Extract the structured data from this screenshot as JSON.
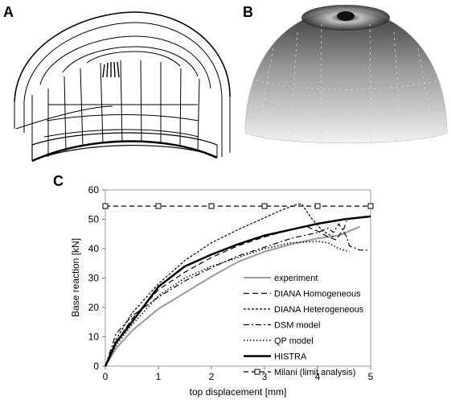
{
  "panels": {
    "a_label": "A",
    "b_label": "B",
    "c_label": "C"
  },
  "chart_data": {
    "type": "line",
    "xlabel": "top displacement [mm]",
    "ylabel": "Base reaction [kN]",
    "xlim": [
      0,
      5
    ],
    "ylim": [
      0,
      60
    ],
    "x_ticks": [
      0,
      1,
      2,
      3,
      4,
      5
    ],
    "y_ticks": [
      0,
      10,
      20,
      30,
      40,
      50,
      60
    ],
    "grid": false,
    "legend_position": "bottom-right",
    "series": [
      {
        "name": "experiment",
        "color": "#9a9a9a",
        "dash": "solid",
        "x": [
          0,
          0.2,
          0.5,
          1.0,
          1.5,
          2.0,
          2.5,
          3.0,
          3.5,
          4.0,
          4.4,
          4.6,
          4.8
        ],
        "y": [
          0,
          6,
          12,
          19.5,
          25,
          30.5,
          35.5,
          39,
          41.5,
          43.5,
          44.5,
          46,
          47.5
        ]
      },
      {
        "name": "DIANA Homogeneous",
        "color": "#000000",
        "dash": "long-dash",
        "x": [
          0,
          0.2,
          0.5,
          1.0,
          1.5,
          2.0,
          2.5,
          3.0,
          3.5,
          3.8,
          4.0,
          4.2,
          4.35,
          4.5,
          4.55
        ],
        "y": [
          0,
          8,
          16,
          26,
          32,
          37,
          41,
          44,
          46.5,
          47.5,
          46,
          44,
          43,
          47,
          49.5
        ]
      },
      {
        "name": "DIANA Heterogeneous",
        "color": "#000000",
        "dash": "short-dash",
        "x": [
          0,
          0.2,
          0.5,
          1.0,
          1.5,
          2.0,
          2.5,
          3.0,
          3.3,
          3.6,
          3.7,
          3.9,
          4.1,
          4.3
        ],
        "y": [
          0,
          9,
          18,
          28,
          36,
          42,
          46.5,
          50.5,
          53,
          55,
          55.3,
          50,
          46,
          44
        ]
      },
      {
        "name": "DSM model",
        "color": "#000000",
        "dash": "dash-dot",
        "x": [
          0,
          0.2,
          0.5,
          1.0,
          1.5,
          2.0,
          2.5,
          3.0,
          3.5,
          4.0,
          4.2,
          4.3,
          4.4,
          4.55,
          4.6,
          4.8,
          4.95
        ],
        "y": [
          0,
          11,
          17,
          23.5,
          29,
          33.5,
          37.5,
          40.5,
          43.5,
          45.5,
          47,
          45.5,
          48.5,
          44,
          41,
          39.5,
          39.5
        ]
      },
      {
        "name": "QP model",
        "color": "#000000",
        "dash": "dotted",
        "x": [
          0,
          0.2,
          0.5,
          1.0,
          1.5,
          2.0,
          2.5,
          3.0,
          3.5,
          4.0,
          4.2,
          4.4,
          4.6
        ],
        "y": [
          0,
          7,
          14,
          24,
          30,
          34,
          37,
          40,
          42,
          42.5,
          42,
          40,
          39
        ]
      },
      {
        "name": "HISTRA",
        "color": "#000000",
        "dash": "solid-thick",
        "x": [
          0,
          0.2,
          0.5,
          1.0,
          1.5,
          2.0,
          2.5,
          3.0,
          3.5,
          4.0,
          4.5,
          5.0
        ],
        "y": [
          0,
          8,
          15,
          27,
          34,
          38,
          41.5,
          44.5,
          46.5,
          48.5,
          50,
          51
        ]
      },
      {
        "name": "Milani (limit analysis)",
        "color": "#000000",
        "dash": "dashed-square-markers",
        "x": [
          0,
          1,
          2,
          3,
          4,
          5
        ],
        "y": [
          54.5,
          54.5,
          54.5,
          54.5,
          54.5,
          54.5
        ]
      }
    ]
  }
}
